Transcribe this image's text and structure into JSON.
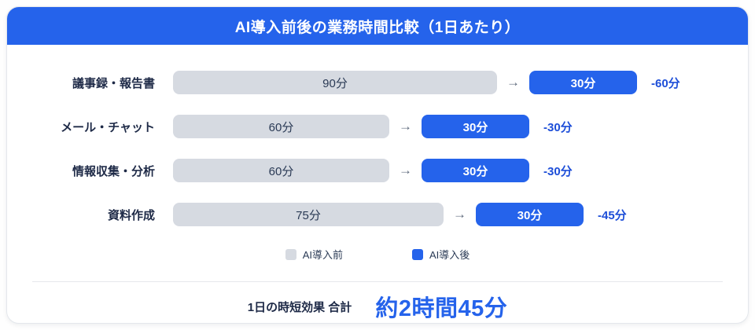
{
  "header": {
    "title": "AI導入前後の業務時間比較（1日あたり）"
  },
  "chart_data": {
    "type": "bar",
    "orientation": "horizontal",
    "unit": "分",
    "categories": [
      "議事録・報告書",
      "メール・チャット",
      "情報収集・分析",
      "資料作成"
    ],
    "series": [
      {
        "name": "AI導入前",
        "values": [
          90,
          60,
          60,
          75
        ]
      },
      {
        "name": "AI導入後",
        "values": [
          30,
          30,
          30,
          30
        ]
      }
    ],
    "bar_labels_before": [
      "90分",
      "60分",
      "60分",
      "75分"
    ],
    "bar_labels_after": [
      "30分",
      "30分",
      "30分",
      "30分"
    ],
    "deltas": [
      "-60分",
      "-30分",
      "-30分",
      "-45分"
    ],
    "legend": [
      "AI導入前",
      "AI導入後"
    ],
    "legend_position": "bottom",
    "colors": {
      "before": "#D6DAE1",
      "after": "#2563EB",
      "delta_text": "#1D4ED8",
      "header": "#2563EB"
    }
  },
  "legend": {
    "before_label": "AI導入前",
    "after_label": "AI導入後"
  },
  "footer": {
    "label": "1日の時短効果 合計",
    "total": "約2時間45分"
  },
  "arrow_icon": "→"
}
